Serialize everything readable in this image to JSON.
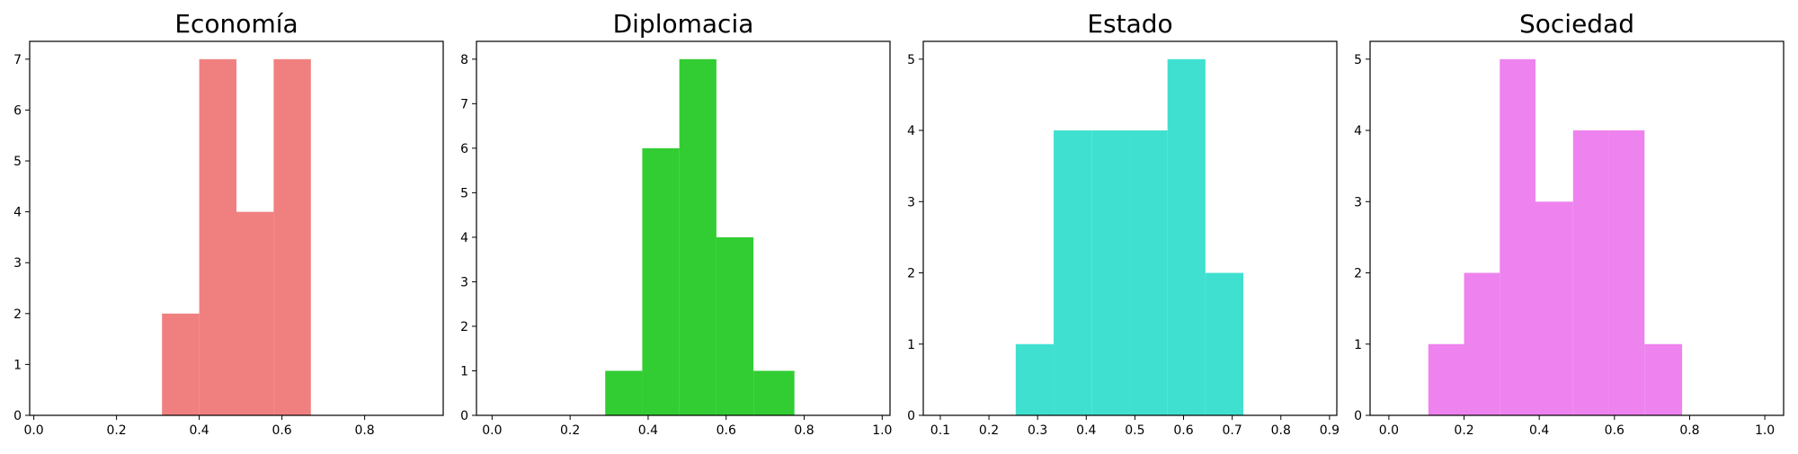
{
  "chart_data": [
    {
      "type": "bar",
      "title": "Economía",
      "color": "#f08080",
      "bins": [
        {
          "x0": 0.31,
          "x1": 0.4,
          "count": 2
        },
        {
          "x0": 0.4,
          "x1": 0.49,
          "count": 7
        },
        {
          "x0": 0.49,
          "x1": 0.58,
          "count": 4
        },
        {
          "x0": 0.58,
          "x1": 0.67,
          "count": 7
        }
      ],
      "xlim": [
        -0.01,
        0.99
      ],
      "ylim": [
        0,
        7.35
      ],
      "xticks": [
        {
          "value": 0.0,
          "label": "0.0"
        },
        {
          "value": 0.2,
          "label": "0.2"
        },
        {
          "value": 0.4,
          "label": "0.4"
        },
        {
          "value": 0.6,
          "label": "0.6"
        },
        {
          "value": 0.8,
          "label": "0.8"
        }
      ],
      "yticks": [
        {
          "value": 0,
          "label": "0"
        },
        {
          "value": 1,
          "label": "1"
        },
        {
          "value": 2,
          "label": "2"
        },
        {
          "value": 3,
          "label": "3"
        },
        {
          "value": 4,
          "label": "4"
        },
        {
          "value": 5,
          "label": "5"
        },
        {
          "value": 6,
          "label": "6"
        },
        {
          "value": 7,
          "label": "7"
        }
      ]
    },
    {
      "type": "bar",
      "title": "Diplomacia",
      "color": "#32cd32",
      "bins": [
        {
          "x0": 0.29,
          "x1": 0.385,
          "count": 1
        },
        {
          "x0": 0.385,
          "x1": 0.48,
          "count": 6
        },
        {
          "x0": 0.48,
          "x1": 0.575,
          "count": 8
        },
        {
          "x0": 0.575,
          "x1": 0.67,
          "count": 4
        },
        {
          "x0": 0.67,
          "x1": 0.775,
          "count": 1
        }
      ],
      "xlim": [
        -0.04,
        1.02
      ],
      "ylim": [
        0,
        8.4
      ],
      "xticks": [
        {
          "value": 0.0,
          "label": "0.0"
        },
        {
          "value": 0.2,
          "label": "0.2"
        },
        {
          "value": 0.4,
          "label": "0.4"
        },
        {
          "value": 0.6,
          "label": "0.6"
        },
        {
          "value": 0.8,
          "label": "0.8"
        },
        {
          "value": 1.0,
          "label": "1.0"
        }
      ],
      "yticks": [
        {
          "value": 0,
          "label": "0"
        },
        {
          "value": 1,
          "label": "1"
        },
        {
          "value": 2,
          "label": "2"
        },
        {
          "value": 3,
          "label": "3"
        },
        {
          "value": 4,
          "label": "4"
        },
        {
          "value": 5,
          "label": "5"
        },
        {
          "value": 6,
          "label": "6"
        },
        {
          "value": 7,
          "label": "7"
        },
        {
          "value": 8,
          "label": "8"
        }
      ]
    },
    {
      "type": "bar",
      "title": "Estado",
      "color": "#40e0d0",
      "bins": [
        {
          "x0": 0.255,
          "x1": 0.333,
          "count": 1
        },
        {
          "x0": 0.333,
          "x1": 0.411,
          "count": 4
        },
        {
          "x0": 0.411,
          "x1": 0.489,
          "count": 4
        },
        {
          "x0": 0.489,
          "x1": 0.567,
          "count": 4
        },
        {
          "x0": 0.567,
          "x1": 0.645,
          "count": 5
        },
        {
          "x0": 0.645,
          "x1": 0.723,
          "count": 2
        }
      ],
      "xlim": [
        0.065,
        0.915
      ],
      "ylim": [
        0,
        5.25
      ],
      "xticks": [
        {
          "value": 0.1,
          "label": "0.1"
        },
        {
          "value": 0.2,
          "label": "0.2"
        },
        {
          "value": 0.3,
          "label": "0.3"
        },
        {
          "value": 0.4,
          "label": "0.4"
        },
        {
          "value": 0.5,
          "label": "0.5"
        },
        {
          "value": 0.6,
          "label": "0.6"
        },
        {
          "value": 0.7,
          "label": "0.7"
        },
        {
          "value": 0.8,
          "label": "0.8"
        },
        {
          "value": 0.9,
          "label": "0.9"
        }
      ],
      "yticks": [
        {
          "value": 0,
          "label": "0"
        },
        {
          "value": 1,
          "label": "1"
        },
        {
          "value": 2,
          "label": "2"
        },
        {
          "value": 3,
          "label": "3"
        },
        {
          "value": 4,
          "label": "4"
        },
        {
          "value": 5,
          "label": "5"
        }
      ]
    },
    {
      "type": "bar",
      "title": "Sociedad",
      "color": "#ee82ee",
      "bins": [
        {
          "x0": 0.105,
          "x1": 0.2,
          "count": 1
        },
        {
          "x0": 0.2,
          "x1": 0.295,
          "count": 2
        },
        {
          "x0": 0.295,
          "x1": 0.39,
          "count": 5
        },
        {
          "x0": 0.39,
          "x1": 0.49,
          "count": 3
        },
        {
          "x0": 0.49,
          "x1": 0.585,
          "count": 4
        },
        {
          "x0": 0.585,
          "x1": 0.68,
          "count": 4
        },
        {
          "x0": 0.68,
          "x1": 0.78,
          "count": 1
        }
      ],
      "xlim": [
        -0.05,
        1.05
      ],
      "ylim": [
        0,
        5.25
      ],
      "xticks": [
        {
          "value": 0.0,
          "label": "0.0"
        },
        {
          "value": 0.2,
          "label": "0.2"
        },
        {
          "value": 0.4,
          "label": "0.4"
        },
        {
          "value": 0.6,
          "label": "0.6"
        },
        {
          "value": 0.8,
          "label": "0.8"
        },
        {
          "value": 1.0,
          "label": "1.0"
        }
      ],
      "yticks": [
        {
          "value": 0,
          "label": "0"
        },
        {
          "value": 1,
          "label": "1"
        },
        {
          "value": 2,
          "label": "2"
        },
        {
          "value": 3,
          "label": "3"
        },
        {
          "value": 4,
          "label": "4"
        },
        {
          "value": 5,
          "label": "5"
        }
      ]
    }
  ]
}
